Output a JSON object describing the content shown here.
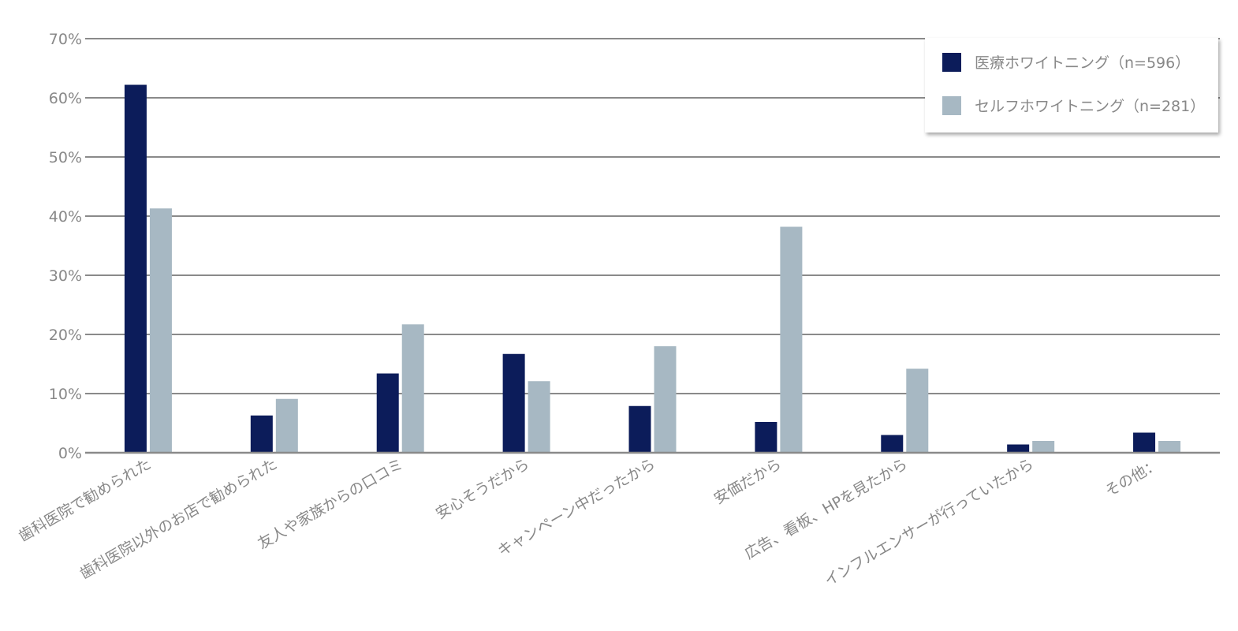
{
  "colors": {
    "series1": "#0c1c5a",
    "series2": "#a7b8c3",
    "grid": "#8a8a8a",
    "axis_text": "#888888",
    "background": "#ffffff"
  },
  "chart_data": {
    "type": "bar",
    "title": "",
    "xlabel": "",
    "ylabel": "",
    "ylim": [
      0,
      70
    ],
    "y_unit": "percent",
    "grid": true,
    "legend_position": "top-right",
    "y_ticks": [
      "0%",
      "10%",
      "20%",
      "30%",
      "40%",
      "50%",
      "60%",
      "70%"
    ],
    "categories": [
      "歯科医院で勧められた",
      "歯科医院以外のお店で勧められた",
      "友人や家族からの口コミ",
      "安心そうだから",
      "キャンペーン中だったから",
      "安価だから",
      "広告、看板、HPを見たから",
      "インフルエンサーが行っていたから",
      "その他："
    ],
    "series": [
      {
        "name": "医療ホワイトニング（n=596）",
        "values": [
          62.2,
          6.3,
          13.4,
          16.7,
          7.9,
          5.2,
          3.0,
          1.4,
          3.4
        ]
      },
      {
        "name": "セルフホワイトニング（n=281）",
        "values": [
          41.3,
          9.1,
          21.7,
          12.1,
          18.0,
          38.2,
          14.2,
          2.0,
          2.0
        ]
      }
    ]
  }
}
